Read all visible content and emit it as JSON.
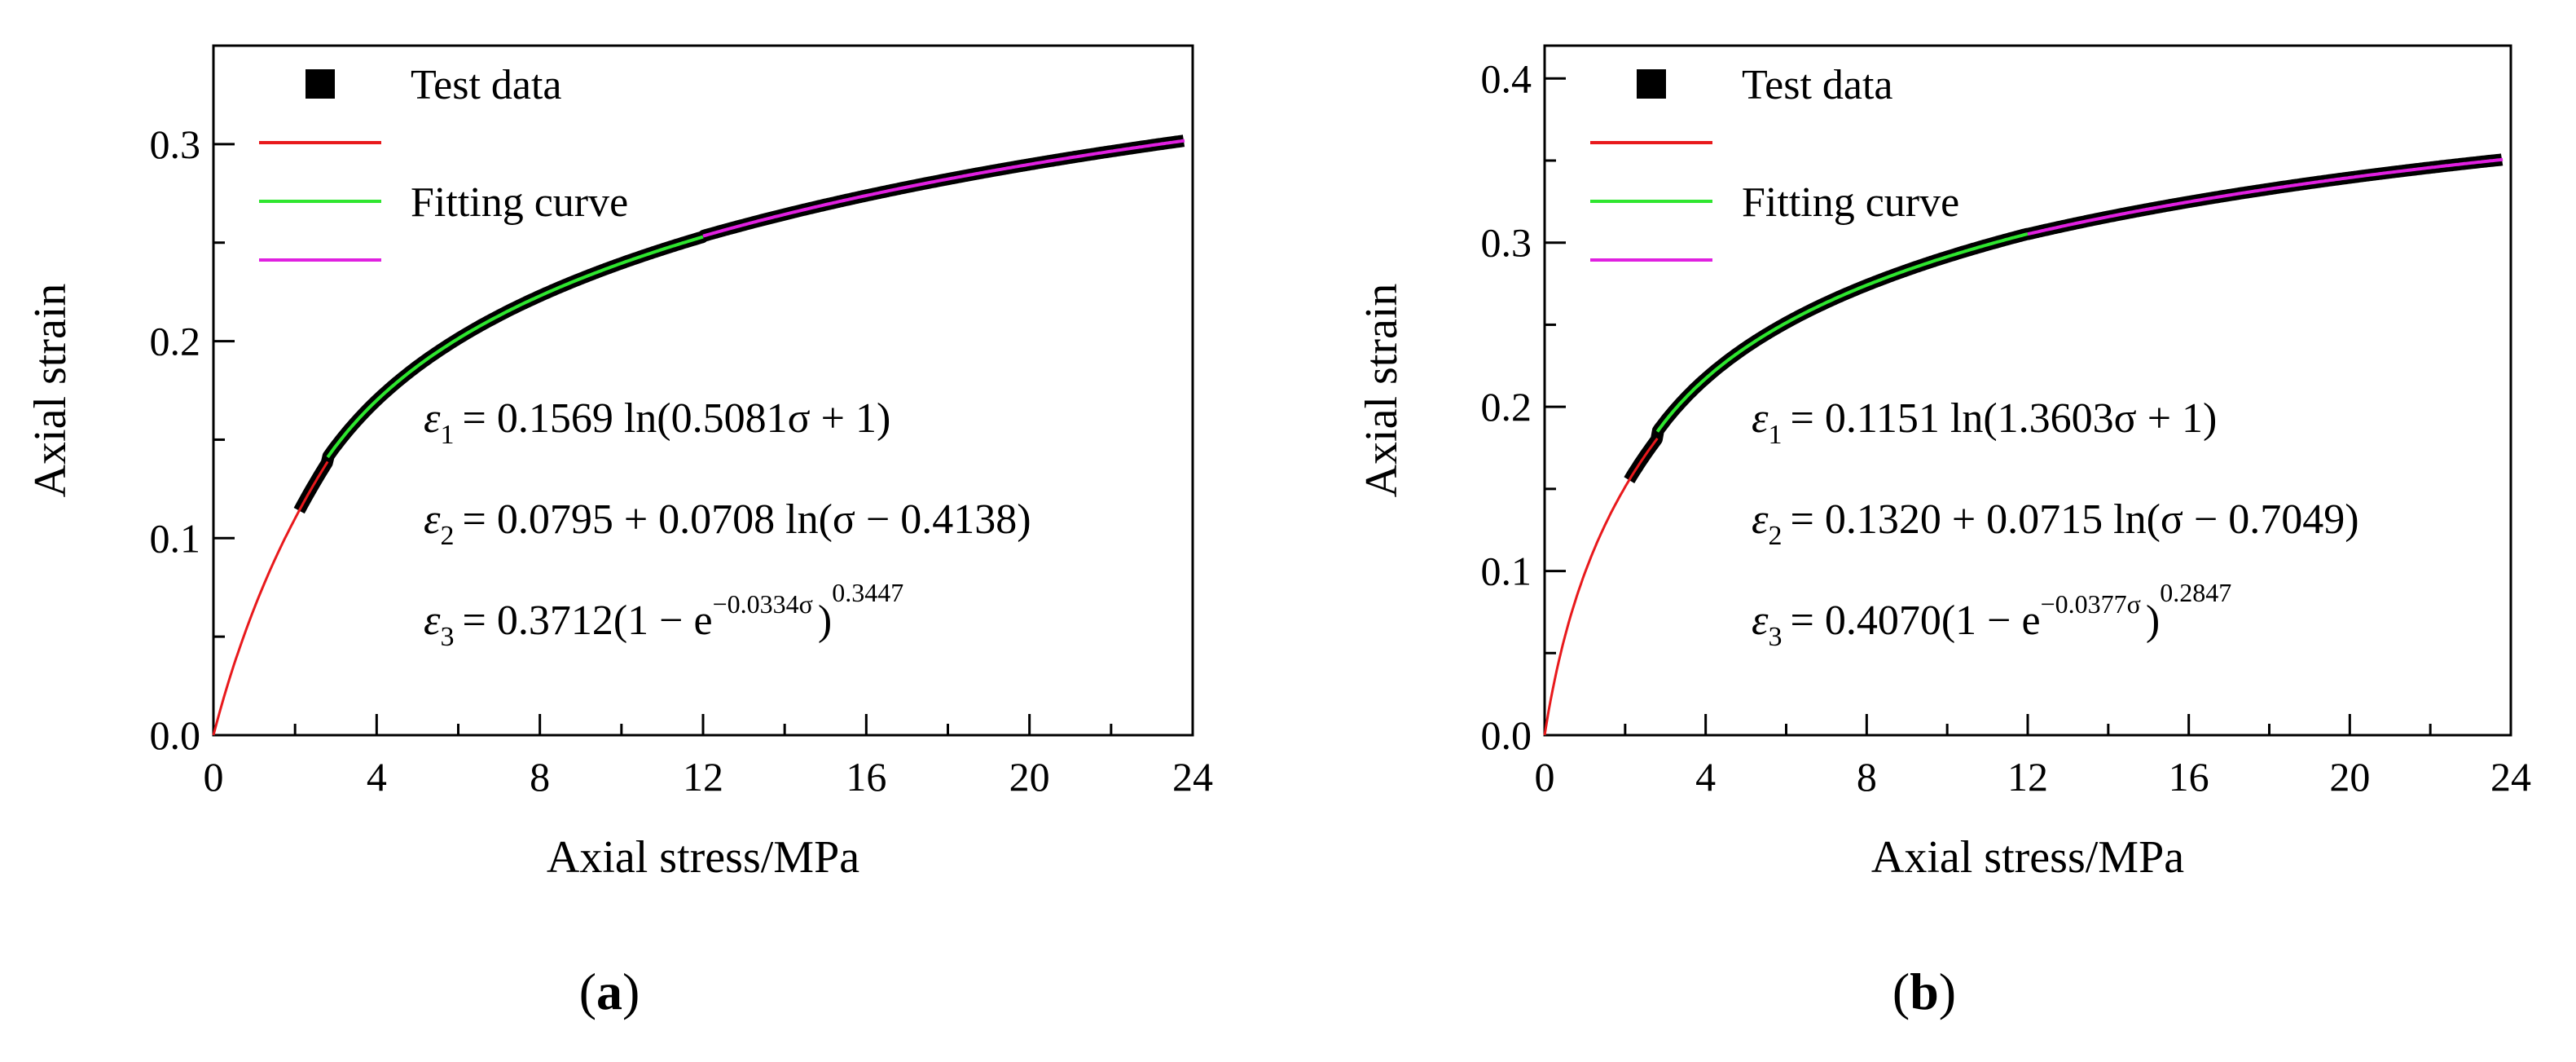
{
  "chart_data": [
    {
      "type": "line",
      "panel_label": "a",
      "xlabel": "Axial stress/MPa",
      "ylabel": "Axial strain",
      "xlim": [
        0,
        24
      ],
      "ylim": [
        0,
        0.35
      ],
      "xticks": [
        0,
        4,
        8,
        12,
        16,
        20,
        24
      ],
      "yticks": [
        0.0,
        0.1,
        0.2,
        0.3
      ],
      "ytick_labels": [
        "0.0",
        "0.1",
        "0.2",
        "0.3"
      ],
      "legend": {
        "position": "top-left",
        "entries": [
          {
            "label": "Test data",
            "marker": "square",
            "color": "#000000"
          },
          {
            "label": "",
            "color": "#e8191c"
          },
          {
            "label": "Fitting curve",
            "color": "#2fe62f"
          },
          {
            "label": "",
            "color": "#e020e0"
          }
        ]
      },
      "equations": [
        {
          "sym": "ε",
          "sub": "1",
          "body": "= 0.1569 ln(0.5081σ + 1)"
        },
        {
          "sym": "ε",
          "sub": "2",
          "body": "= 0.0795 + 0.0708 ln(σ − 0.4138)"
        },
        {
          "sym": "ε",
          "sub": "3",
          "body": "= 0.3712(1 − e",
          "exp": "−0.0334σ",
          "tail": ")",
          "power": "0.3447"
        }
      ],
      "params": {
        "a1": 0.1569,
        "b1": 0.5081,
        "c2": 0.0795,
        "a2": 0.0708,
        "s2": 0.4138,
        "a3": 0.3712,
        "k3": 0.0334,
        "n3": 0.3447
      },
      "stage_ranges": {
        "stage1": [
          0,
          2.8
        ],
        "stage2": [
          2.8,
          12
        ],
        "stage3": [
          12,
          23.8
        ]
      },
      "test_data_range": [
        2.1,
        23.8
      ],
      "colors": {
        "stage1": "#e8191c",
        "stage2": "#2fe62f",
        "stage3": "#e020e0",
        "data": "#000000"
      }
    },
    {
      "type": "line",
      "panel_label": "b",
      "xlabel": "Axial stress/MPa",
      "ylabel": "Axial strain",
      "xlim": [
        0,
        24
      ],
      "ylim": [
        0,
        0.42
      ],
      "xticks": [
        0,
        4,
        8,
        12,
        16,
        20,
        24
      ],
      "yticks": [
        0.0,
        0.1,
        0.2,
        0.3,
        0.4
      ],
      "ytick_labels": [
        "0.0",
        "0.1",
        "0.2",
        "0.3",
        "0.4"
      ],
      "legend": {
        "position": "top-left",
        "entries": [
          {
            "label": "Test data",
            "marker": "square",
            "color": "#000000"
          },
          {
            "label": "",
            "color": "#e8191c"
          },
          {
            "label": "Fitting curve",
            "color": "#2fe62f"
          },
          {
            "label": "",
            "color": "#e020e0"
          }
        ]
      },
      "equations": [
        {
          "sym": "ε",
          "sub": "1",
          "body": "= 0.1151 ln(1.3603σ + 1)"
        },
        {
          "sym": "ε",
          "sub": "2",
          "body": "= 0.1320 + 0.0715 ln(σ − 0.7049)"
        },
        {
          "sym": "ε",
          "sub": "3",
          "body": "= 0.4070(1 − e",
          "exp": "−0.0377σ",
          "tail": ")",
          "power": "0.2847"
        }
      ],
      "params": {
        "a1": 0.1151,
        "b1": 1.3603,
        "c2": 0.132,
        "a2": 0.0715,
        "s2": 0.7049,
        "a3": 0.407,
        "k3": 0.0377,
        "n3": 0.2847
      },
      "stage_ranges": {
        "stage1": [
          0,
          2.8
        ],
        "stage2": [
          2.8,
          12
        ],
        "stage3": [
          12,
          23.8
        ]
      },
      "test_data_range": [
        2.1,
        23.8
      ],
      "colors": {
        "stage1": "#e8191c",
        "stage2": "#2fe62f",
        "stage3": "#e020e0",
        "data": "#000000"
      }
    }
  ]
}
